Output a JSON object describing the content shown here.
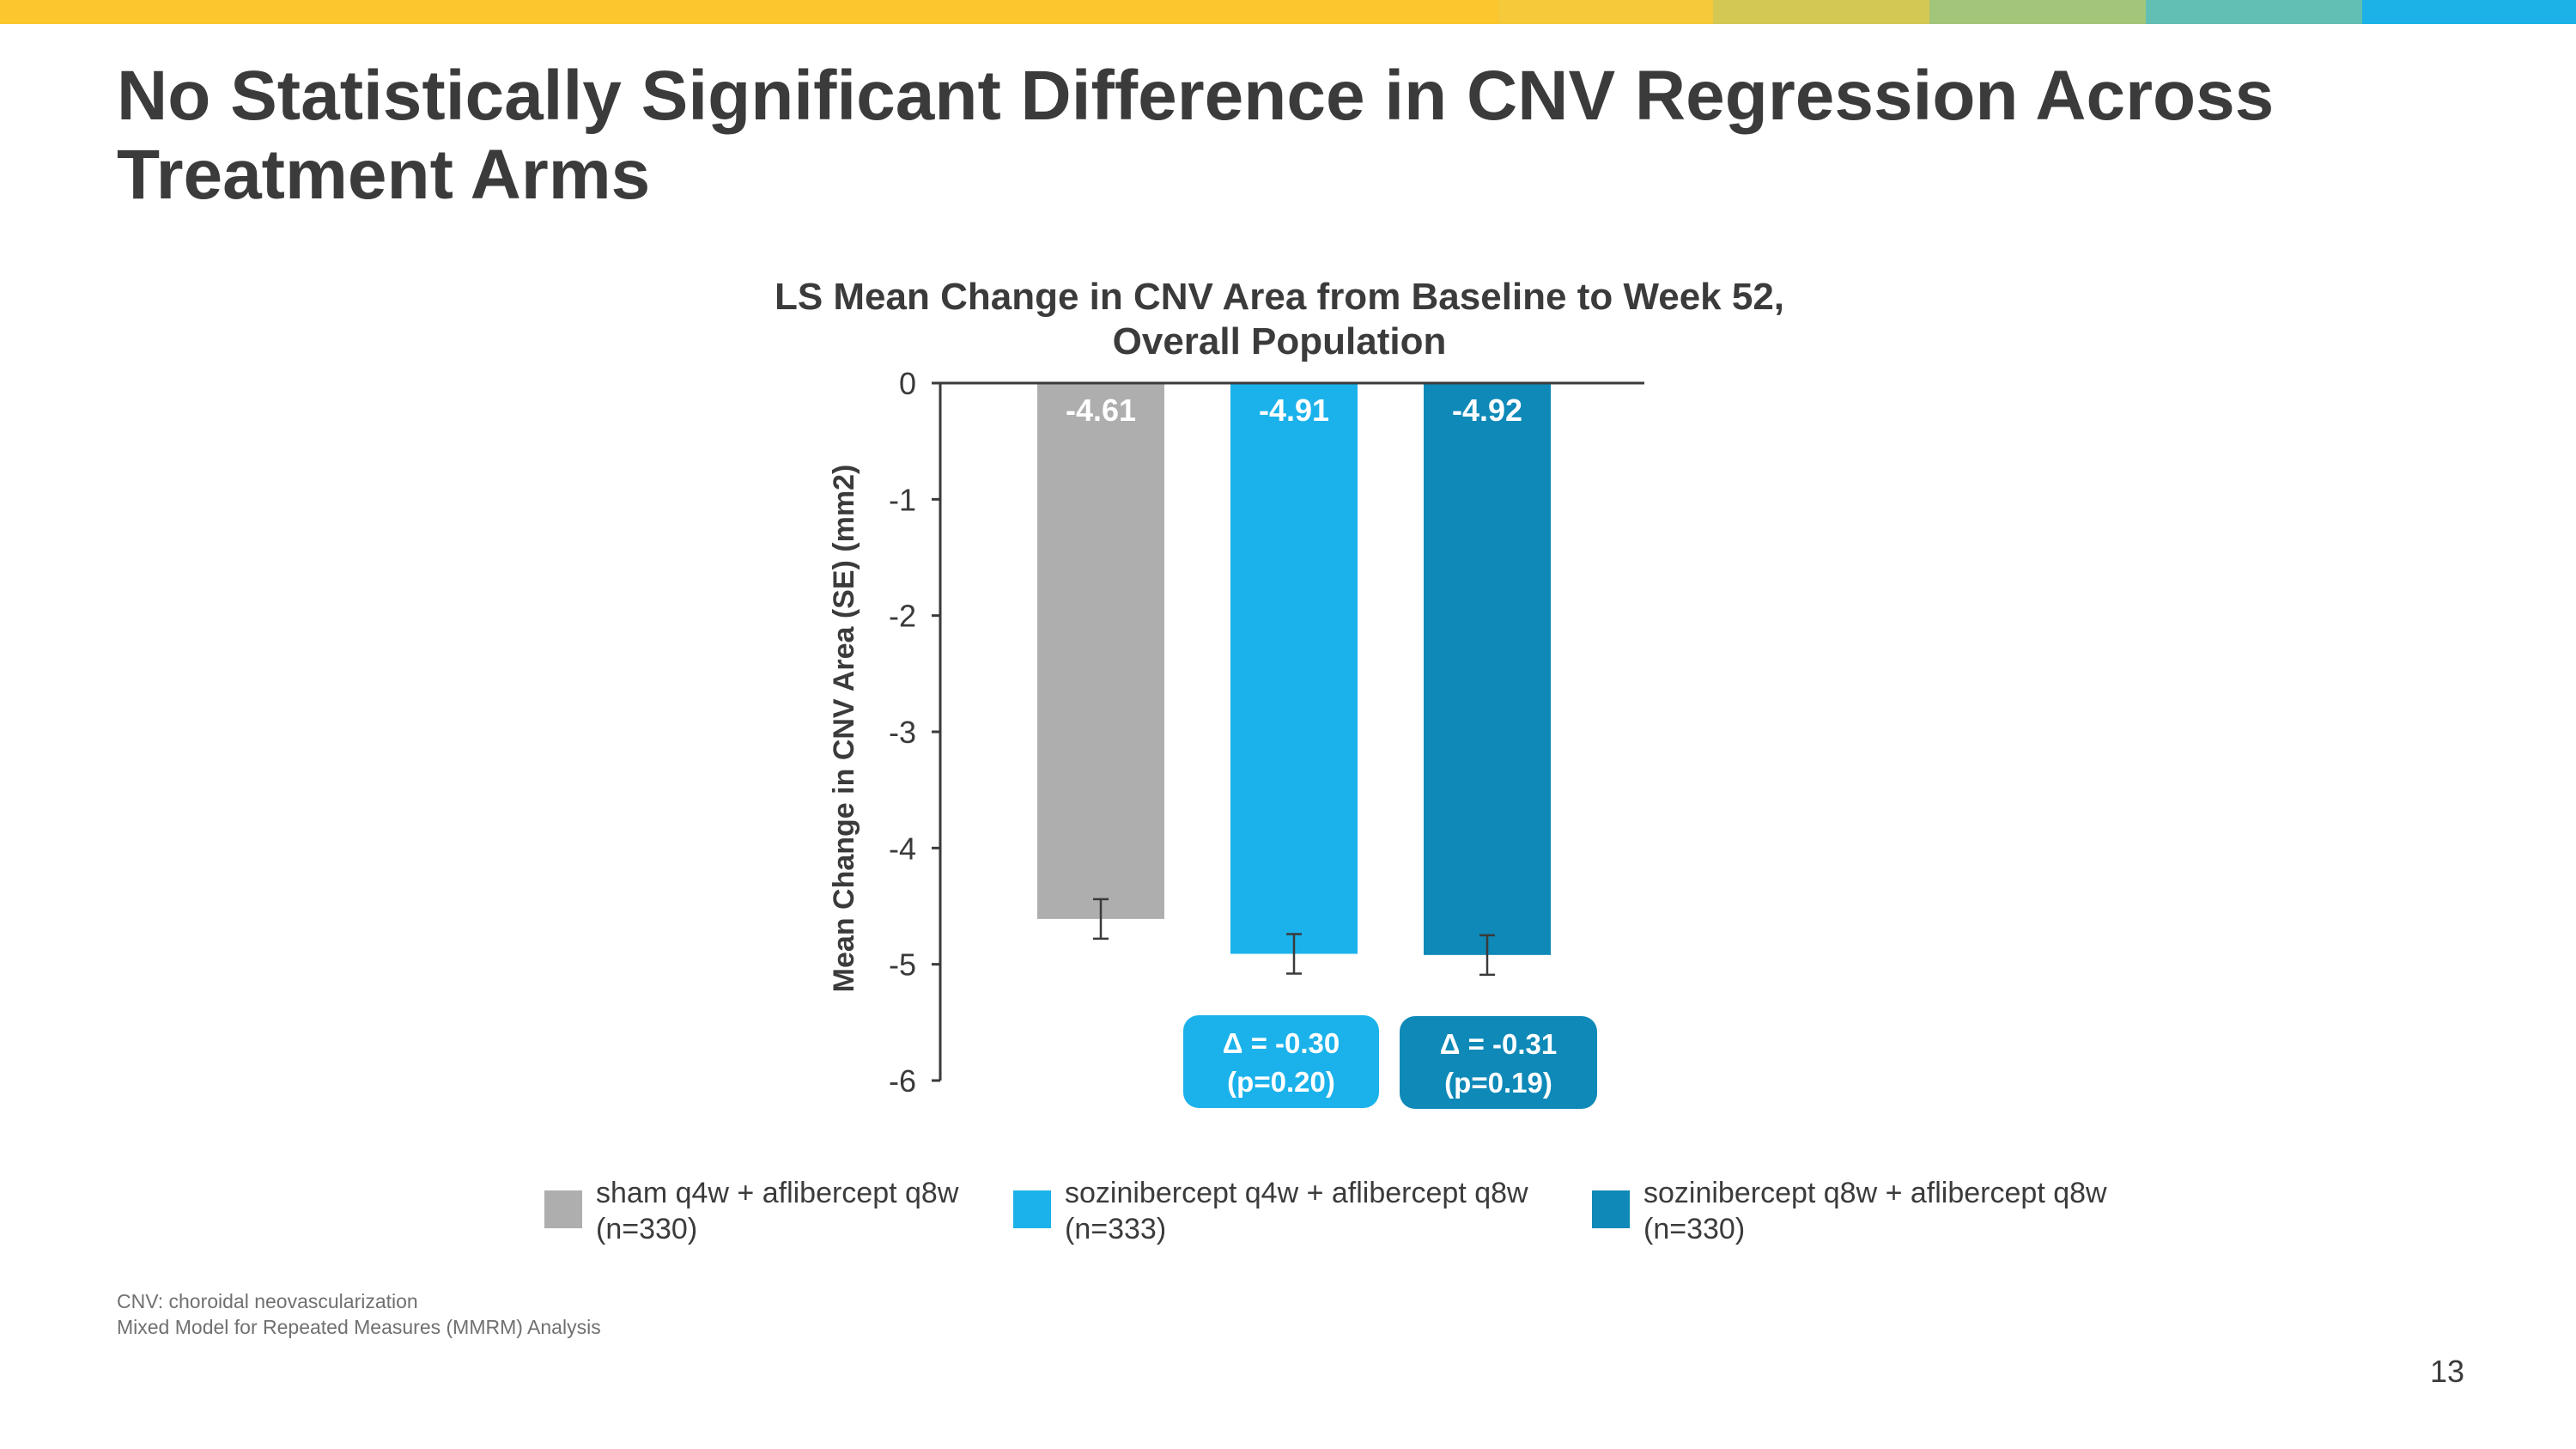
{
  "colors": {
    "topbar": [
      "#FCC72D",
      "#FCC72D",
      "#FCC72D",
      "#FCC72D",
      "#FCC72D",
      "#FCC72D",
      "#FCC72D",
      "#F5C93A",
      "#D4C854",
      "#A3C57A",
      "#62BFB3",
      "#1CB2E8"
    ],
    "sham": "#AEAEAE",
    "q4w": "#1BB2EB",
    "q8w": "#0E89B8",
    "axis": "#3a3a3a"
  },
  "slide": {
    "title_line1": "No Statistically Significant Difference in CNV Regression Across",
    "title_line2": "Treatment Arms",
    "page_number": "13"
  },
  "footnotes": {
    "line1": "CNV: choroidal neovascularization",
    "line2": "Mixed Model for Repeated Measures (MMRM) Analysis"
  },
  "chart_data": {
    "type": "bar",
    "title_line1": "LS Mean Change in CNV Area from Baseline to Week 52,",
    "title_line2": "Overall Population",
    "ylabel": "Mean Change in CNV Area (SE) (mm2)",
    "xlabel": "",
    "ylim": [
      -6,
      0
    ],
    "yticks": [
      "0",
      "-1",
      "-2",
      "-3",
      "-4",
      "-5",
      "-6"
    ],
    "categories": [
      "sham q4w + aflibercept q8w (n=330)",
      "sozinibercept q4w + aflibercept q8w (n=333)",
      "sozinibercept q8w + aflibercept q8w (n=330)"
    ],
    "values": [
      -4.61,
      -4.91,
      -4.92
    ],
    "value_labels": [
      "-4.61",
      "-4.91",
      "-4.92"
    ],
    "se": [
      0.17,
      0.17,
      0.17
    ],
    "legend": [
      {
        "line1": "sham q4w + aflibercept q8w",
        "line2": "(n=330)"
      },
      {
        "line1": "sozinibercept q4w + aflibercept q8w",
        "line2": "(n=333)"
      },
      {
        "line1": "sozinibercept q8w + aflibercept q8w",
        "line2": "(n=330)"
      }
    ],
    "annotations": [
      {
        "line1": "Δ = -0.30",
        "line2": "(p=0.20)"
      },
      {
        "line1": "Δ = -0.31",
        "line2": "(p=0.19)"
      }
    ]
  }
}
